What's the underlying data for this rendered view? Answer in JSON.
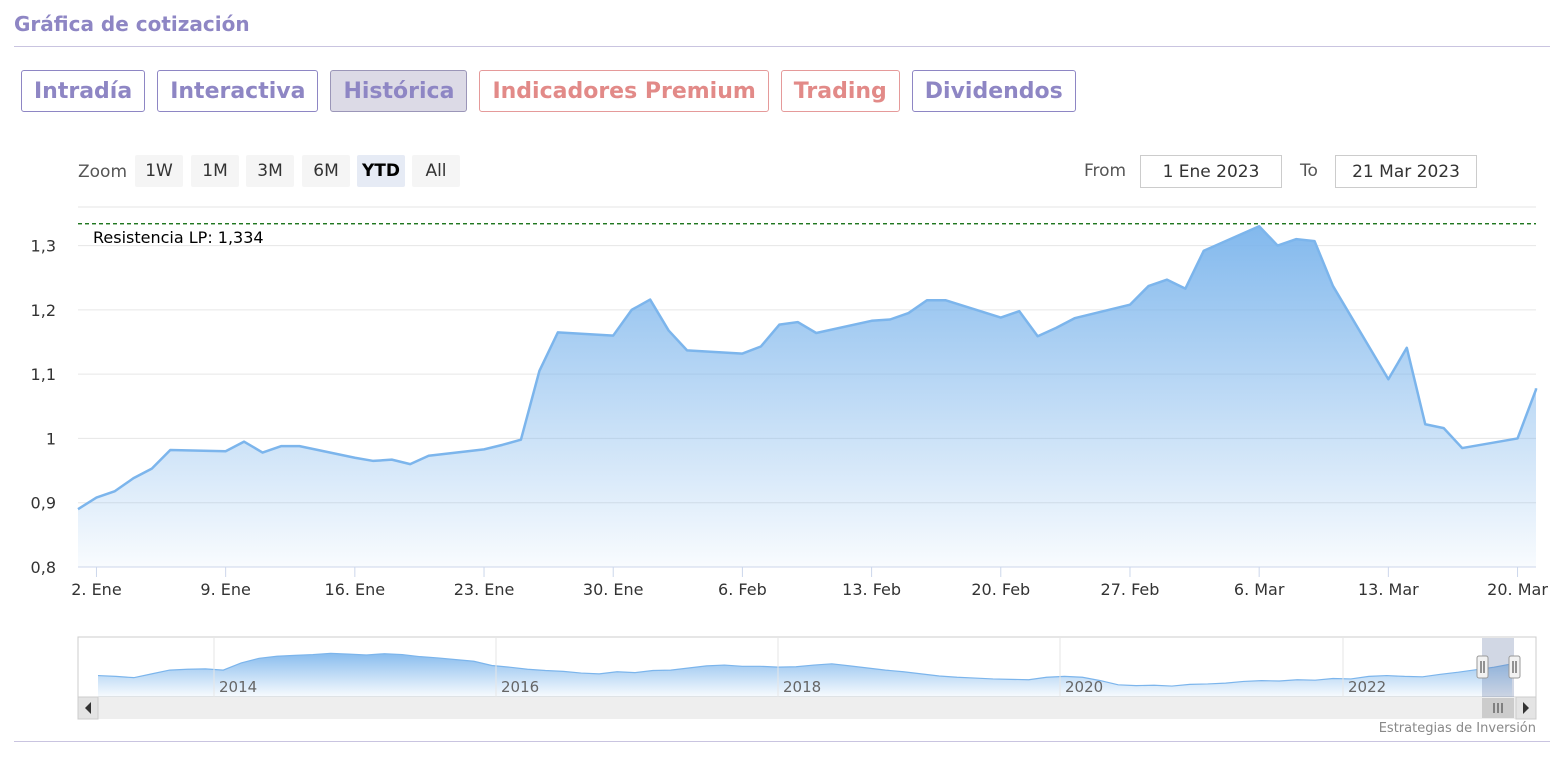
{
  "header": {
    "title": "Gráfica de cotización"
  },
  "tabs": [
    {
      "label": "Intradía",
      "style": "normal"
    },
    {
      "label": "Interactiva",
      "style": "normal"
    },
    {
      "label": "Histórica",
      "style": "active"
    },
    {
      "label": "Indicadores Premium",
      "style": "premium"
    },
    {
      "label": "Trading",
      "style": "premium"
    },
    {
      "label": "Dividendos",
      "style": "normal"
    }
  ],
  "toolbar": {
    "zoom_label": "Zoom",
    "zoom_buttons": [
      "1W",
      "1M",
      "3M",
      "6M",
      "YTD",
      "All"
    ],
    "zoom_selected": "YTD",
    "from_label": "From",
    "from_value": "1 Ene 2023",
    "to_label": "To",
    "to_value": "21 Mar 2023"
  },
  "credits": "Estrategias de Inversión",
  "colors": {
    "accent": "#8e86c4",
    "premium": "#e28a88",
    "series_line": "#7cb5ec",
    "resistance_line": "#006400"
  },
  "chart_data": {
    "type": "area",
    "x": [
      "2023-01-02",
      "2023-01-03",
      "2023-01-04",
      "2023-01-05",
      "2023-01-06",
      "2023-01-09",
      "2023-01-10",
      "2023-01-11",
      "2023-01-12",
      "2023-01-13",
      "2023-01-16",
      "2023-01-17",
      "2023-01-18",
      "2023-01-19",
      "2023-01-20",
      "2023-01-23",
      "2023-01-24",
      "2023-01-25",
      "2023-01-26",
      "2023-01-27",
      "2023-01-30",
      "2023-01-31",
      "2023-02-01",
      "2023-02-02",
      "2023-02-03",
      "2023-02-06",
      "2023-02-07",
      "2023-02-08",
      "2023-02-09",
      "2023-02-10",
      "2023-02-13",
      "2023-02-14",
      "2023-02-15",
      "2023-02-16",
      "2023-02-17",
      "2023-02-20",
      "2023-02-21",
      "2023-02-22",
      "2023-02-23",
      "2023-02-24",
      "2023-02-27",
      "2023-02-28",
      "2023-03-01",
      "2023-03-02",
      "2023-03-03",
      "2023-03-06",
      "2023-03-07",
      "2023-03-08",
      "2023-03-09",
      "2023-03-10",
      "2023-03-13",
      "2023-03-14",
      "2023-03-15",
      "2023-03-16",
      "2023-03-17",
      "2023-03-20",
      "2023-03-21"
    ],
    "y": [
      0.908,
      0.918,
      0.938,
      0.953,
      0.982,
      0.98,
      0.995,
      0.978,
      0.988,
      0.988,
      0.97,
      0.965,
      0.967,
      0.96,
      0.973,
      0.983,
      0.99,
      0.998,
      1.105,
      1.165,
      1.16,
      1.2,
      1.216,
      1.168,
      1.137,
      1.132,
      1.143,
      1.177,
      1.181,
      1.164,
      1.183,
      1.185,
      1.195,
      1.215,
      1.215,
      1.188,
      1.198,
      1.159,
      1.172,
      1.187,
      1.208,
      1.237,
      1.247,
      1.233,
      1.292,
      1.33,
      1.3,
      1.31,
      1.307,
      1.237,
      1.092,
      1.141,
      1.022,
      1.016,
      0.985,
      1.0,
      1.076
    ],
    "y_ticks": [
      "0,8",
      "0,9",
      "1",
      "1,1",
      "1,2",
      "1,3"
    ],
    "ylim": [
      0.8,
      1.36
    ],
    "x_ticks": [
      {
        "date": "2023-01-02",
        "label": "2. Ene"
      },
      {
        "date": "2023-01-09",
        "label": "9. Ene"
      },
      {
        "date": "2023-01-16",
        "label": "16. Ene"
      },
      {
        "date": "2023-01-23",
        "label": "23. Ene"
      },
      {
        "date": "2023-01-30",
        "label": "30. Ene"
      },
      {
        "date": "2023-02-06",
        "label": "6. Feb"
      },
      {
        "date": "2023-02-13",
        "label": "13. Feb"
      },
      {
        "date": "2023-02-20",
        "label": "20. Feb"
      },
      {
        "date": "2023-02-27",
        "label": "27. Feb"
      },
      {
        "date": "2023-03-06",
        "label": "6. Mar"
      },
      {
        "date": "2023-03-13",
        "label": "13. Mar"
      },
      {
        "date": "2023-03-20",
        "label": "20. Mar"
      }
    ],
    "x_start": "2023-01-01",
    "x_end": "2023-03-21",
    "grid": true,
    "plot_line": {
      "label": "Resistencia LP: 1,334",
      "value": 1.334
    },
    "navigator": {
      "year_labels": [
        "2014",
        "2016",
        "2018",
        "2020",
        "2022"
      ],
      "series": [
        0.32,
        0.3,
        0.27,
        0.36,
        0.45,
        0.47,
        0.48,
        0.45,
        0.62,
        0.73,
        0.78,
        0.8,
        0.82,
        0.85,
        0.83,
        0.81,
        0.84,
        0.82,
        0.77,
        0.74,
        0.7,
        0.66,
        0.56,
        0.52,
        0.47,
        0.44,
        0.42,
        0.38,
        0.36,
        0.41,
        0.39,
        0.44,
        0.45,
        0.5,
        0.55,
        0.57,
        0.54,
        0.54,
        0.52,
        0.53,
        0.57,
        0.6,
        0.55,
        0.5,
        0.45,
        0.41,
        0.36,
        0.31,
        0.28,
        0.26,
        0.24,
        0.23,
        0.22,
        0.28,
        0.3,
        0.28,
        0.2,
        0.1,
        0.08,
        0.09,
        0.07,
        0.11,
        0.12,
        0.14,
        0.18,
        0.2,
        0.19,
        0.22,
        0.21,
        0.25,
        0.24,
        0.3,
        0.32,
        0.3,
        0.29,
        0.35,
        0.4,
        0.46,
        0.52,
        0.6
      ]
    }
  }
}
